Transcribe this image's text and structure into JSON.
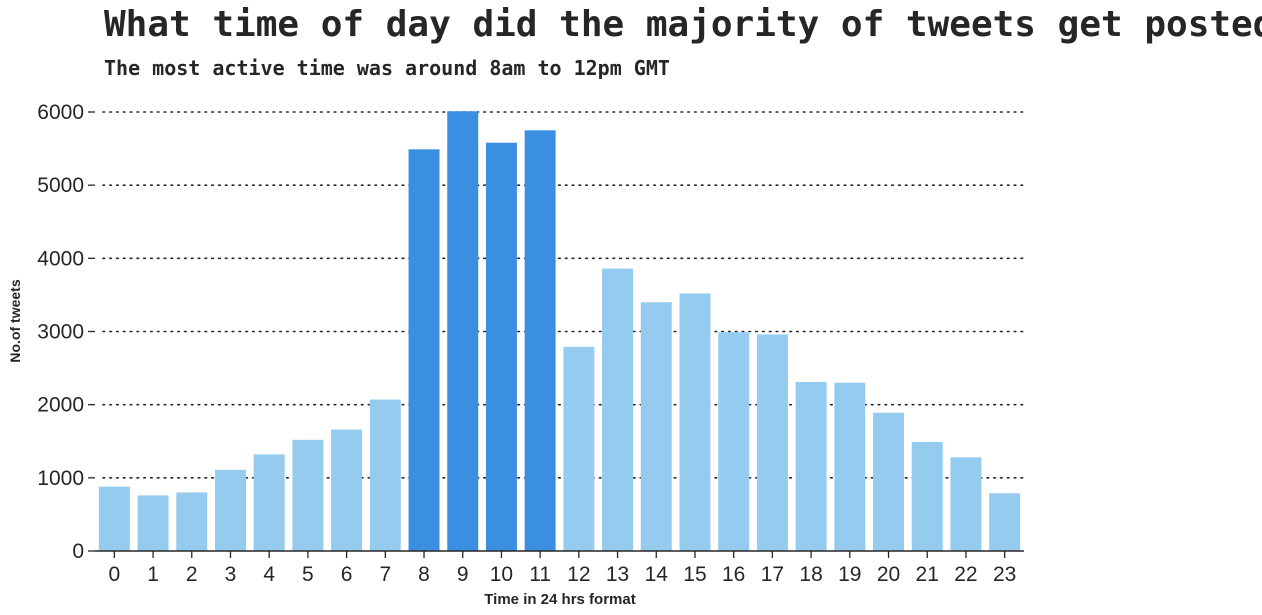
{
  "chart_data": {
    "type": "bar",
    "title": "What time of day did the majority of tweets get posted?",
    "subtitle": "The most active time was around 8am to 12pm GMT",
    "xlabel": "Time in 24 hrs format",
    "ylabel": "No.of tweets",
    "categories": [
      "0",
      "1",
      "2",
      "3",
      "4",
      "5",
      "6",
      "7",
      "8",
      "9",
      "10",
      "11",
      "12",
      "13",
      "14",
      "15",
      "16",
      "17",
      "18",
      "19",
      "20",
      "21",
      "22",
      "23"
    ],
    "values": [
      880,
      760,
      800,
      1110,
      1320,
      1520,
      1660,
      2070,
      5490,
      6010,
      5580,
      5750,
      2790,
      3860,
      3400,
      3520,
      2990,
      2960,
      2310,
      2300,
      1890,
      1490,
      1280,
      790
    ],
    "ylim": [
      0,
      6000
    ],
    "yticks": [
      0,
      1000,
      2000,
      3000,
      4000,
      5000,
      6000
    ],
    "grid": "horizontal dotted",
    "colors": {
      "default": "#95cbee",
      "highlight": "#3a8fe2",
      "text": "#262626",
      "grid": "#262626"
    },
    "highlighted_categories": [
      "8",
      "9",
      "10",
      "11"
    ]
  }
}
